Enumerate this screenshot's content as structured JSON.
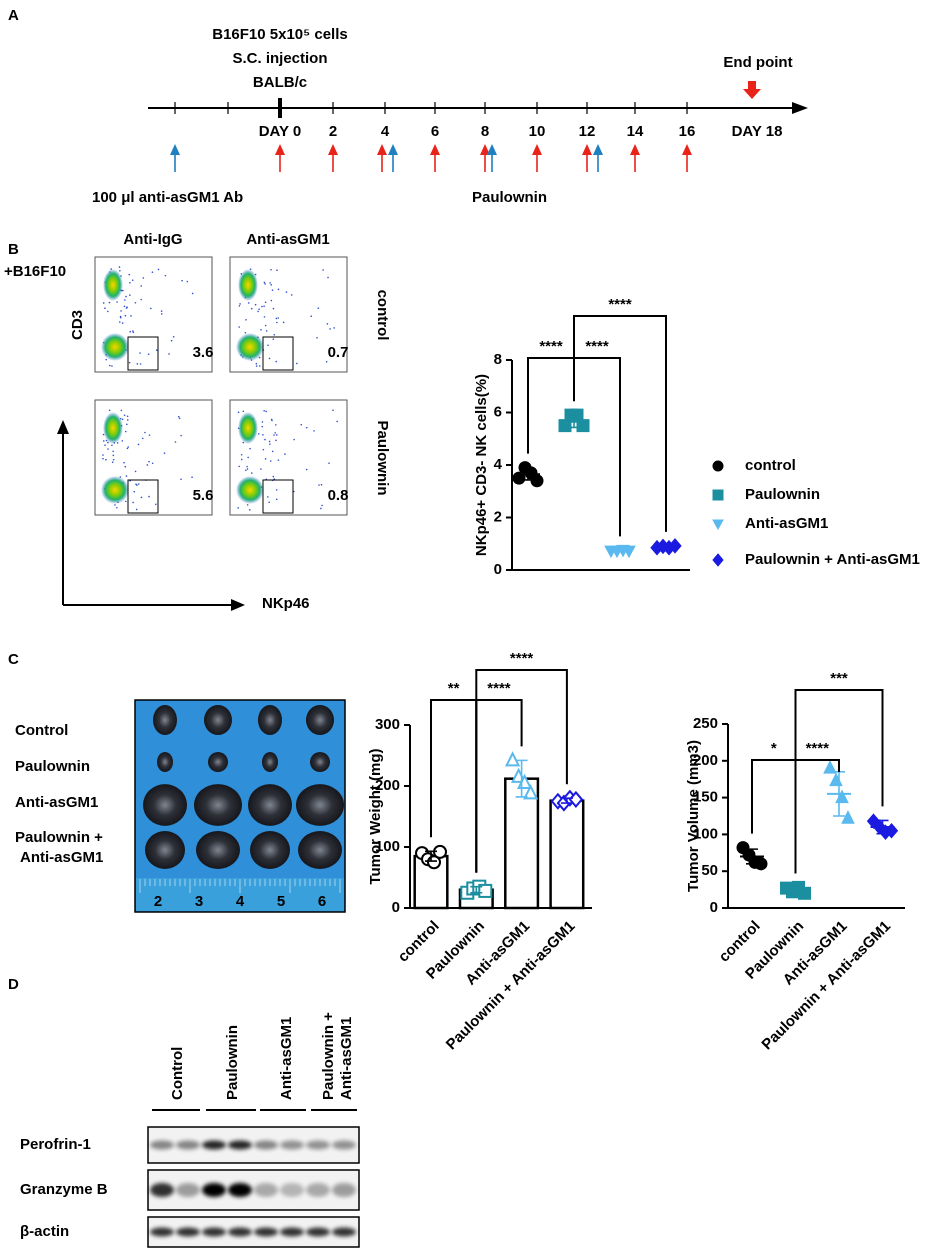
{
  "panel_labels": [
    "A",
    "B",
    "C",
    "D"
  ],
  "timeline": {
    "injection": [
      "B16F10 5x10⁵ cells",
      "S.C. injection",
      "BALB/c"
    ],
    "days": [
      "DAY 0",
      "2",
      "4",
      "6",
      "8",
      "10",
      "12",
      "14",
      "16",
      "DAY 18"
    ],
    "end_point": "End point",
    "antibody": "100 μl anti-asGM1 Ab",
    "treatment": "Paulownin"
  },
  "flow": {
    "condition": "+B16F10",
    "columns": [
      "Anti-IgG",
      "Anti-asGM1"
    ],
    "rows": [
      "control",
      "Paulownin"
    ],
    "y_axis": "CD3",
    "x_axis": "NKp46",
    "gates": [
      [
        3.6,
        0.7
      ],
      [
        5.6,
        0.8
      ]
    ]
  },
  "photo": {
    "rows": [
      [
        "Control"
      ],
      [
        "Paulownin"
      ],
      [
        "Anti-asGM1"
      ],
      [
        "Paulownin +",
        "Anti-asGM1"
      ]
    ],
    "ruler": [
      2,
      3,
      4,
      5,
      6
    ]
  },
  "western": {
    "lanes": [
      [
        "Control"
      ],
      [
        "Paulownin"
      ],
      [
        "Anti-asGM1"
      ],
      [
        "Paulownin +",
        "Anti-asGM1"
      ]
    ],
    "bands": [
      "Perofrin-1",
      "Granzyme B",
      "β-actin"
    ]
  },
  "chart_data": [
    {
      "type": "dot",
      "ylabel": "NKp46+ CD3- NK cells(%)",
      "ylim": [
        0,
        8
      ],
      "yticks": [
        0,
        2,
        4,
        6,
        8
      ],
      "legend": "right",
      "filled": true,
      "series": [
        {
          "name": "control",
          "color": "#000000",
          "marker": "circle",
          "values": [
            3.5,
            3.9,
            3.7,
            3.4
          ],
          "mean": 3.65,
          "error": 0.22
        },
        {
          "name": "Paulownin",
          "color": "#1b8fa0",
          "marker": "square",
          "values": [
            5.5,
            5.9,
            5.9,
            5.5
          ],
          "mean": 5.65,
          "error": 0.22
        },
        {
          "name": "Anti-asGM1",
          "color": "#5ab9ee",
          "marker": "triangle-down",
          "values": [
            0.72,
            0.72,
            0.75,
            0.72
          ],
          "mean": 0.73,
          "error": 0.02
        },
        {
          "name": "Paulownin + Anti-asGM1",
          "color": "#1a1ae0",
          "marker": "diamond",
          "values": [
            0.85,
            0.9,
            0.85,
            0.92
          ],
          "mean": 0.88,
          "error": 0.03
        }
      ],
      "brackets": [
        {
          "from": "control",
          "to": "Paulownin",
          "label": "****"
        },
        {
          "from": "Paulownin",
          "to": "Anti-asGM1",
          "label": "****"
        },
        {
          "from": "Paulownin",
          "to": "Paulownin + Anti-asGM1",
          "label": "****"
        }
      ]
    },
    {
      "type": "bar",
      "ylabel": "Tumor Weight (mg)",
      "ylim": [
        0,
        300
      ],
      "yticks": [
        0,
        100,
        200,
        300
      ],
      "filled": false,
      "categories": [
        "control",
        "Paulownin",
        "Anti-asGM1",
        "Paulownin + Anti-asGM1"
      ],
      "series": [
        {
          "color": "#000000",
          "marker": "circle",
          "values": [
            90,
            80,
            75,
            92
          ],
          "mean": 85,
          "error": 8
        },
        {
          "color": "#1b8fa0",
          "marker": "square",
          "values": [
            25,
            32,
            35,
            28
          ],
          "mean": 30,
          "error": 5
        },
        {
          "color": "#5ab9ee",
          "marker": "triangle",
          "values": [
            242,
            215,
            205,
            188
          ],
          "mean": 212,
          "error": 30
        },
        {
          "color": "#1a1ae0",
          "marker": "diamond",
          "values": [
            175,
            172,
            180,
            178
          ],
          "mean": 176,
          "error": 4
        }
      ],
      "brackets": [
        {
          "from": "control",
          "to": "Paulownin",
          "label": "**"
        },
        {
          "from": "Paulownin",
          "to": "Anti-asGM1",
          "label": "****"
        },
        {
          "from": "Paulownin",
          "to": "Paulownin + Anti-asGM1",
          "label": "****"
        }
      ]
    },
    {
      "type": "dot",
      "ylabel": "Tumor Volume (mm3)",
      "ylim": [
        0,
        250
      ],
      "yticks": [
        0,
        50,
        100,
        150,
        200,
        250
      ],
      "filled": true,
      "categories": [
        "control",
        "Paulownin",
        "Anti-asGM1",
        "Paulownin + Anti-asGM1"
      ],
      "series": [
        {
          "color": "#000000",
          "marker": "circle",
          "values": [
            82,
            72,
            62,
            60
          ],
          "mean": 70,
          "error": 10
        },
        {
          "color": "#1b8fa0",
          "marker": "square",
          "values": [
            27,
            22,
            28,
            20
          ],
          "mean": 24,
          "error": 4
        },
        {
          "color": "#5ab9ee",
          "marker": "triangle",
          "values": [
            190,
            173,
            150,
            122
          ],
          "mean": 155,
          "error": 30
        },
        {
          "color": "#1a1ae0",
          "marker": "diamond",
          "values": [
            118,
            110,
            103,
            105
          ],
          "mean": 110,
          "error": 9
        }
      ],
      "brackets": [
        {
          "from": "control",
          "to": "Paulownin",
          "label": "*"
        },
        {
          "from": "Paulownin",
          "to": "Anti-asGM1",
          "label": "****"
        },
        {
          "from": "Paulownin",
          "to": "Paulownin + Anti-asGM1",
          "label": "***"
        }
      ]
    }
  ]
}
